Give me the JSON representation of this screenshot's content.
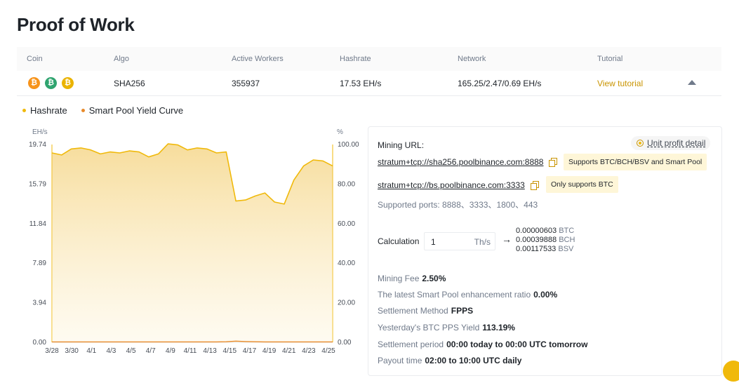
{
  "page": {
    "title": "Proof of Work"
  },
  "table": {
    "headers": [
      "Coin",
      "Algo",
      "Active Workers",
      "Hashrate",
      "Network",
      "Tutorial"
    ],
    "row": {
      "coins": [
        {
          "symbol": "₿",
          "name": "btc-icon",
          "color": "#f7931a"
        },
        {
          "symbol": "₿",
          "name": "bch-icon",
          "color": "#2fa46f"
        },
        {
          "symbol": "₿",
          "name": "bsv-icon",
          "color": "#eab300"
        }
      ],
      "algo": "SHA256",
      "active_workers": "355937",
      "hashrate": "17.53 EH/s",
      "network": "165.25/2.47/0.69 EH/s",
      "tutorial_label": "View tutorial"
    }
  },
  "legend": {
    "items": [
      "Hashrate",
      "Smart Pool Yield Curve"
    ]
  },
  "chart_data": {
    "type": "area",
    "left_axis_label": "EH/s",
    "right_axis_label": "%",
    "left_ticks": [
      "19.74",
      "15.79",
      "11.84",
      "7.89",
      "3.94",
      "0.00"
    ],
    "right_ticks": [
      "100.00",
      "80.00",
      "60.00",
      "40.00",
      "20.00",
      "0.00"
    ],
    "ylim_left": [
      0,
      19.74
    ],
    "ylim_right": [
      0,
      100
    ],
    "x_tick_labels": [
      "3/28",
      "3/30",
      "4/1",
      "4/3",
      "4/5",
      "4/7",
      "4/9",
      "4/11",
      "4/13",
      "4/15",
      "4/17",
      "4/19",
      "4/21",
      "4/23",
      "4/25"
    ],
    "series": [
      {
        "name": "Hashrate",
        "axis": "left",
        "color": "#f0b90b",
        "x": [
          "3/28",
          "3/29",
          "3/30",
          "3/31",
          "4/1",
          "4/2",
          "4/3",
          "4/4",
          "4/5",
          "4/6",
          "4/7",
          "4/8",
          "4/9",
          "4/10",
          "4/11",
          "4/12",
          "4/13",
          "4/14",
          "4/15",
          "4/16",
          "4/17",
          "4/18",
          "4/19",
          "4/20",
          "4/21",
          "4/22",
          "4/23",
          "4/24",
          "4/25",
          "4/26"
        ],
        "values": [
          18.9,
          18.7,
          19.3,
          19.4,
          19.2,
          18.8,
          19.0,
          18.9,
          19.1,
          19.0,
          18.5,
          18.8,
          19.8,
          19.7,
          19.2,
          19.4,
          19.3,
          18.9,
          19.0,
          14.1,
          14.2,
          14.6,
          14.9,
          14.0,
          13.8,
          16.2,
          17.6,
          18.2,
          18.1,
          17.6
        ]
      },
      {
        "name": "Smart Pool Yield Curve",
        "axis": "right",
        "color": "#e88a2a",
        "x": [
          "3/28",
          "3/29",
          "3/30",
          "3/31",
          "4/1",
          "4/2",
          "4/3",
          "4/4",
          "4/5",
          "4/6",
          "4/7",
          "4/8",
          "4/9",
          "4/10",
          "4/11",
          "4/12",
          "4/13",
          "4/14",
          "4/15",
          "4/16",
          "4/17",
          "4/18",
          "4/19",
          "4/20",
          "4/21",
          "4/22",
          "4/23",
          "4/24",
          "4/25",
          "4/26"
        ],
        "values": [
          0.2,
          0.2,
          0.2,
          0.2,
          0.2,
          0.2,
          0.2,
          0.2,
          0.2,
          0.2,
          0.2,
          0.2,
          0.2,
          0.2,
          0.2,
          0.2,
          0.2,
          0.2,
          0.3,
          0.6,
          0.4,
          0.3,
          0.2,
          0.2,
          0.2,
          0.2,
          0.2,
          0.2,
          0.2,
          0.2
        ]
      }
    ]
  },
  "panel": {
    "mining_url_label": "Mining URL:",
    "unit_profit_label": "Unit profit detail",
    "urls": [
      {
        "url": "stratum+tcp://sha256.poolbinance.com:8888",
        "tag": "Supports BTC/BCH/BSV and Smart Pool"
      },
      {
        "url": "stratum+tcp://bs.poolbinance.com:3333",
        "tag": "Only supports BTC"
      }
    ],
    "supported_ports": "Supported ports: 8888、3333、1800、443",
    "calculation": {
      "label": "Calculation",
      "input_value": "1",
      "unit": "Th/s",
      "arrow": "→",
      "results": [
        {
          "value": "0.00000603",
          "currency": "BTC"
        },
        {
          "value": "0.00039888",
          "currency": "BCH"
        },
        {
          "value": "0.00117533",
          "currency": "BSV"
        }
      ]
    },
    "stats": [
      {
        "label": "Mining Fee",
        "value": "2.50%"
      },
      {
        "label": "The latest Smart Pool enhancement ratio",
        "value": "0.00%"
      },
      {
        "label": "Settlement Method",
        "value": "FPPS"
      },
      {
        "label": "Yesterday's BTC PPS Yield",
        "value": "113.19%"
      },
      {
        "label": "Settlement period",
        "value": "00:00 today to 00:00 UTC tomorrow"
      },
      {
        "label": "Payout time",
        "value": "02:00 to 10:00 UTC daily"
      }
    ]
  },
  "colors": {
    "accent": "#f0b90b",
    "link": "#c99400",
    "tag_bg": "#fef6d8"
  }
}
